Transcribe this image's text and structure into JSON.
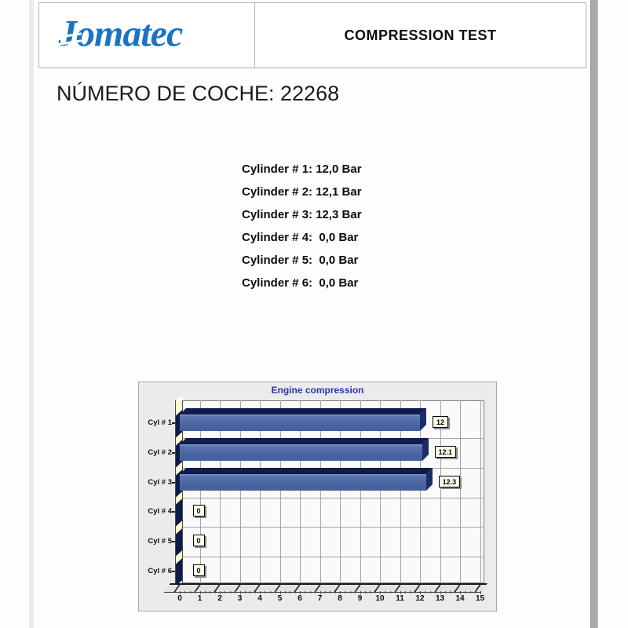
{
  "header": {
    "logo_first": "J",
    "logo_rest": "omatec",
    "title": "COMPRESSION TEST"
  },
  "car_number_heading": "NÚMERO DE COCHE: 22268",
  "readings": [
    "Cylinder # 1: 12,0 Bar",
    "Cylinder # 2: 12,1 Bar",
    "Cylinder # 3: 12,3 Bar",
    "Cylinder # 4:  0,0 Bar",
    "Cylinder # 5:  0,0 Bar",
    "Cylinder # 6:  0,0 Bar"
  ],
  "chart_data": {
    "type": "bar",
    "orientation": "horizontal",
    "title": "Engine compression",
    "categories": [
      "Cyl # 1",
      "Cyl # 2",
      "Cyl # 3",
      "Cyl # 4",
      "Cyl # 5",
      "Cyl # 6"
    ],
    "values": [
      12.0,
      12.1,
      12.3,
      0,
      0,
      0
    ],
    "value_labels": [
      "12",
      "12.1",
      "12.3",
      "0",
      "0",
      "0"
    ],
    "xlabel": "",
    "ylabel": "",
    "xlim": [
      0,
      15
    ],
    "x_ticks": [
      0,
      1,
      2,
      3,
      4,
      5,
      6,
      7,
      8,
      9,
      10,
      11,
      12,
      13,
      14,
      15
    ],
    "grid": true,
    "legend": "none",
    "colors": {
      "bar_front": "#49659f",
      "bar_top": "#121b4e",
      "bar_side": "#1c2c66",
      "axis_wall": "#ffffcf",
      "title": "#3232a8",
      "label_box_bg": "#ffffec",
      "panel_bg": "#ebebeb"
    }
  }
}
